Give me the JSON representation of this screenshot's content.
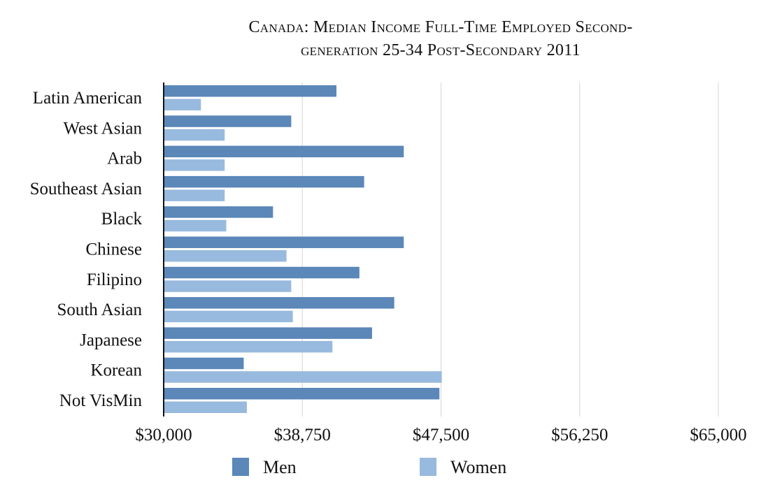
{
  "chart_data": {
    "type": "bar",
    "orientation": "horizontal",
    "title": "Canada: Median Income Full-Time Employed Second-generation 25-34 Post-Secondary 2011",
    "title_lines": [
      "Canada: Median Income Full-Time Employed Second-",
      "generation 25-34 Post-Secondary 2011"
    ],
    "categories": [
      "Latin American",
      "West Asian",
      "Arab",
      "Southeast Asian",
      "Black",
      "Chinese",
      "Filipino",
      "South Asian",
      "Japanese",
      "Korean",
      "Not VisMin"
    ],
    "series": [
      {
        "name": "Men",
        "color": "#5b87b9",
        "values": [
          40900,
          38050,
          45150,
          42650,
          36900,
          45150,
          42350,
          44550,
          43150,
          35050,
          47400
        ]
      },
      {
        "name": "Women",
        "color": "#98bade",
        "values": [
          32350,
          33850,
          33850,
          33850,
          33950,
          37750,
          38050,
          38150,
          40650,
          47550,
          35250
        ]
      }
    ],
    "xlim": [
      30000,
      65000
    ],
    "xticks": [
      30000,
      38750,
      47500,
      56250,
      65000
    ],
    "xtick_labels": [
      "$30,000",
      "$38,750",
      "$47,500",
      "$56,250",
      "$65,000"
    ],
    "grid": true,
    "legend_position": "bottom-center",
    "xlabel": "",
    "ylabel": ""
  }
}
